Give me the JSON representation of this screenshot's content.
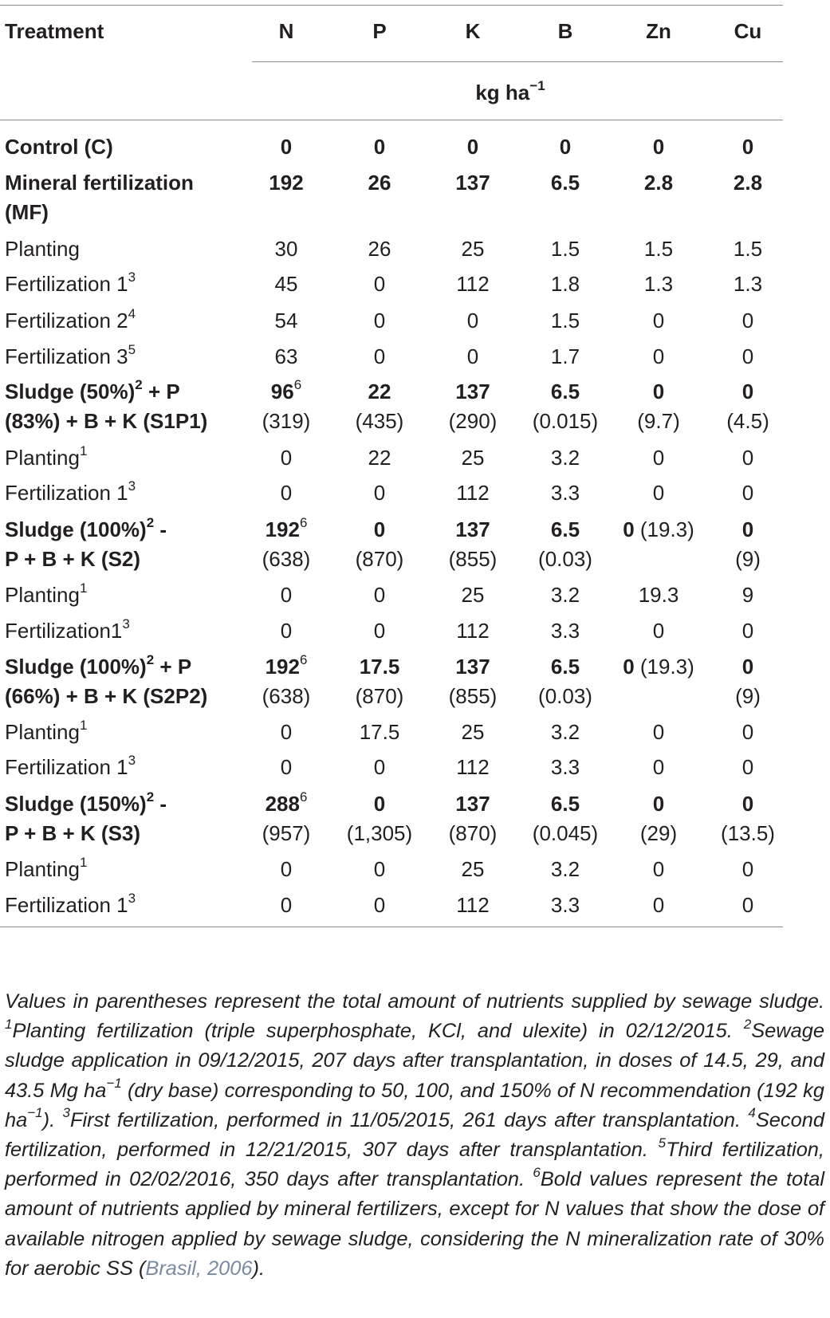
{
  "header": {
    "treatment": "Treatment",
    "cols": [
      "N",
      "P",
      "K",
      "B",
      "Zn",
      "Cu"
    ],
    "unit_main": "kg ha",
    "unit_sup": "−1"
  },
  "rows": [
    {
      "label": "Control (C)",
      "label2": "",
      "sup": "",
      "bold": true,
      "vals": [
        [
          "0",
          ""
        ],
        [
          "0",
          ""
        ],
        [
          "0",
          ""
        ],
        [
          "0",
          ""
        ],
        [
          "0",
          ""
        ],
        [
          "0",
          ""
        ]
      ],
      "paren": [
        "",
        "",
        "",
        "",
        "",
        ""
      ]
    },
    {
      "label": "Mineral fertilization",
      "label2": "(MF)",
      "sup": "",
      "bold": true,
      "vals": [
        [
          "192",
          ""
        ],
        [
          "26",
          ""
        ],
        [
          "137",
          ""
        ],
        [
          "6.5",
          ""
        ],
        [
          "2.8",
          ""
        ],
        [
          "2.8",
          ""
        ]
      ],
      "paren": [
        "",
        "",
        "",
        "",
        "",
        ""
      ]
    },
    {
      "label": "Planting",
      "label2": "",
      "sup": "",
      "bold": false,
      "vals": [
        [
          "30",
          ""
        ],
        [
          "26",
          ""
        ],
        [
          "25",
          ""
        ],
        [
          "1.5",
          ""
        ],
        [
          "1.5",
          ""
        ],
        [
          "1.5",
          ""
        ]
      ],
      "paren": [
        "",
        "",
        "",
        "",
        "",
        ""
      ]
    },
    {
      "label": "Fertilization 1",
      "label2": "",
      "sup": "3",
      "bold": false,
      "vals": [
        [
          "45",
          ""
        ],
        [
          "0",
          ""
        ],
        [
          "112",
          ""
        ],
        [
          "1.8",
          ""
        ],
        [
          "1.3",
          ""
        ],
        [
          "1.3",
          ""
        ]
      ],
      "paren": [
        "",
        "",
        "",
        "",
        "",
        ""
      ]
    },
    {
      "label": "Fertilization 2",
      "label2": "",
      "sup": "4",
      "bold": false,
      "vals": [
        [
          "54",
          ""
        ],
        [
          "0",
          ""
        ],
        [
          "0",
          ""
        ],
        [
          "1.5",
          ""
        ],
        [
          "0",
          ""
        ],
        [
          "0",
          ""
        ]
      ],
      "paren": [
        "",
        "",
        "",
        "",
        "",
        ""
      ]
    },
    {
      "label": "Fertilization 3",
      "label2": "",
      "sup": "5",
      "bold": false,
      "vals": [
        [
          "63",
          ""
        ],
        [
          "0",
          ""
        ],
        [
          "0",
          ""
        ],
        [
          "1.7",
          ""
        ],
        [
          "0",
          ""
        ],
        [
          "0",
          ""
        ]
      ],
      "paren": [
        "",
        "",
        "",
        "",
        "",
        ""
      ]
    },
    {
      "label": "Sludge (50%)",
      "sup": "2",
      "label_tail": " + P",
      "label2": "(83%) + B + K (S1P1)",
      "bold": true,
      "vals": [
        [
          "96",
          "6"
        ],
        [
          "22",
          ""
        ],
        [
          "137",
          ""
        ],
        [
          "6.5",
          ""
        ],
        [
          "0",
          ""
        ],
        [
          "0",
          ""
        ]
      ],
      "paren": [
        "(319)",
        "(435)",
        "(290)",
        "(0.015)",
        "(9.7)",
        "(4.5)"
      ]
    },
    {
      "label": "Planting",
      "label2": "",
      "sup": "1",
      "bold": false,
      "vals": [
        [
          "0",
          ""
        ],
        [
          "22",
          ""
        ],
        [
          "25",
          ""
        ],
        [
          "3.2",
          ""
        ],
        [
          "0",
          ""
        ],
        [
          "0",
          ""
        ]
      ],
      "paren": [
        "",
        "",
        "",
        "",
        "",
        ""
      ]
    },
    {
      "label": "Fertilization 1",
      "label2": "",
      "sup": "3",
      "bold": false,
      "vals": [
        [
          "0",
          ""
        ],
        [
          "0",
          ""
        ],
        [
          "112",
          ""
        ],
        [
          "3.3",
          ""
        ],
        [
          "0",
          ""
        ],
        [
          "0",
          ""
        ]
      ],
      "paren": [
        "",
        "",
        "",
        "",
        "",
        ""
      ]
    },
    {
      "label": "Sludge (100%)",
      "sup": "2",
      "label_tail": " -",
      "label2": "P + B + K (S2)",
      "bold": true,
      "vals": [
        [
          "192",
          "6"
        ],
        [
          "0",
          ""
        ],
        [
          "137",
          ""
        ],
        [
          "6.5",
          ""
        ],
        [
          "0",
          ""
        ],
        [
          "0",
          ""
        ]
      ],
      "zn_inline": " (19.3)",
      "paren": [
        "(638)",
        "(870)",
        "(855)",
        "(0.03)",
        "",
        "(9)"
      ]
    },
    {
      "label": "Planting",
      "label2": "",
      "sup": "1",
      "bold": false,
      "vals": [
        [
          "0",
          ""
        ],
        [
          "0",
          ""
        ],
        [
          "25",
          ""
        ],
        [
          "3.2",
          ""
        ],
        [
          "19.3",
          ""
        ],
        [
          "9",
          ""
        ]
      ],
      "paren": [
        "",
        "",
        "",
        "",
        "",
        ""
      ]
    },
    {
      "label": "Fertilization1",
      "label2": "",
      "sup": "3",
      "bold": false,
      "vals": [
        [
          "0",
          ""
        ],
        [
          "0",
          ""
        ],
        [
          "112",
          ""
        ],
        [
          "3.3",
          ""
        ],
        [
          "0",
          ""
        ],
        [
          "0",
          ""
        ]
      ],
      "paren": [
        "",
        "",
        "",
        "",
        "",
        ""
      ]
    },
    {
      "label": "Sludge (100%)",
      "sup": "2",
      "label_tail": " + P",
      "label2": "(66%) + B + K (S2P2)",
      "bold": true,
      "vals": [
        [
          "192",
          "6"
        ],
        [
          "17.5",
          ""
        ],
        [
          "137",
          ""
        ],
        [
          "6.5",
          ""
        ],
        [
          "0",
          ""
        ],
        [
          "0",
          ""
        ]
      ],
      "zn_inline": " (19.3)",
      "paren": [
        "(638)",
        "(870)",
        "(855)",
        "(0.03)",
        "",
        "(9)"
      ]
    },
    {
      "label": "Planting",
      "label2": "",
      "sup": "1",
      "bold": false,
      "vals": [
        [
          "0",
          ""
        ],
        [
          "17.5",
          ""
        ],
        [
          "25",
          ""
        ],
        [
          "3.2",
          ""
        ],
        [
          "0",
          ""
        ],
        [
          "0",
          ""
        ]
      ],
      "paren": [
        "",
        "",
        "",
        "",
        "",
        ""
      ]
    },
    {
      "label": "Fertilization 1",
      "label2": "",
      "sup": "3",
      "bold": false,
      "vals": [
        [
          "0",
          ""
        ],
        [
          "0",
          ""
        ],
        [
          "112",
          ""
        ],
        [
          "3.3",
          ""
        ],
        [
          "0",
          ""
        ],
        [
          "0",
          ""
        ]
      ],
      "paren": [
        "",
        "",
        "",
        "",
        "",
        ""
      ]
    },
    {
      "label": "Sludge (150%)",
      "sup": "2",
      "label_tail": " -",
      "label2": "P + B + K (S3)",
      "bold": true,
      "vals": [
        [
          "288",
          "6"
        ],
        [
          "0",
          ""
        ],
        [
          "137",
          ""
        ],
        [
          "6.5",
          ""
        ],
        [
          "0",
          ""
        ],
        [
          "0",
          ""
        ]
      ],
      "paren": [
        "(957)",
        "(1,305)",
        "(870)",
        "(0.045)",
        "(29)",
        "(13.5)"
      ]
    },
    {
      "label": "Planting",
      "label2": "",
      "sup": "1",
      "bold": false,
      "vals": [
        [
          "0",
          ""
        ],
        [
          "0",
          ""
        ],
        [
          "25",
          ""
        ],
        [
          "3.2",
          ""
        ],
        [
          "0",
          ""
        ],
        [
          "0",
          ""
        ]
      ],
      "paren": [
        "",
        "",
        "",
        "",
        "",
        ""
      ]
    },
    {
      "label": "Fertilization 1",
      "label2": "",
      "sup": "3",
      "bold": false,
      "vals": [
        [
          "0",
          ""
        ],
        [
          "0",
          ""
        ],
        [
          "112",
          ""
        ],
        [
          "3.3",
          ""
        ],
        [
          "0",
          ""
        ],
        [
          "0",
          ""
        ]
      ],
      "paren": [
        "",
        "",
        "",
        "",
        "",
        ""
      ]
    }
  ],
  "footnote": {
    "p1": "Values in parentheses represent the total amount of nutrients supplied by sewage sludge. ",
    "s1": "1",
    "p2": "Planting fertilization (triple superphosphate, KCl, and ulexite) in 02/12/2015. ",
    "s2": "2",
    "p3": "Sewage sludge application in 09/12/2015, 207 days after transplantation, in doses of 14.5, 29, and 43.5 Mg ha",
    "s3m": "−1",
    "p4": " (dry base) corresponding to 50, 100, and 150% of N recommendation (192 kg ha",
    "s4m": "−1",
    "p5": "). ",
    "s3": "3",
    "p6": "First fertilization, performed in 11/05/2015, 261 days after transplantation. ",
    "s4": "4",
    "p7": "Second fertilization, performed in 12/21/2015, 307 days after transplantation. ",
    "s5": "5",
    "p8": "Third fertilization, performed in 02/02/2016, 350 days after transplantation. ",
    "s6": "6",
    "p9": "Bold values represent the total amount of nutrients applied by mineral fertilizers, except for N values that show the dose of available nitrogen applied by sewage sludge, considering the N mineralization rate of 30% for aerobic SS (",
    "cite": "Brasil, 2006",
    "p10": ")."
  }
}
